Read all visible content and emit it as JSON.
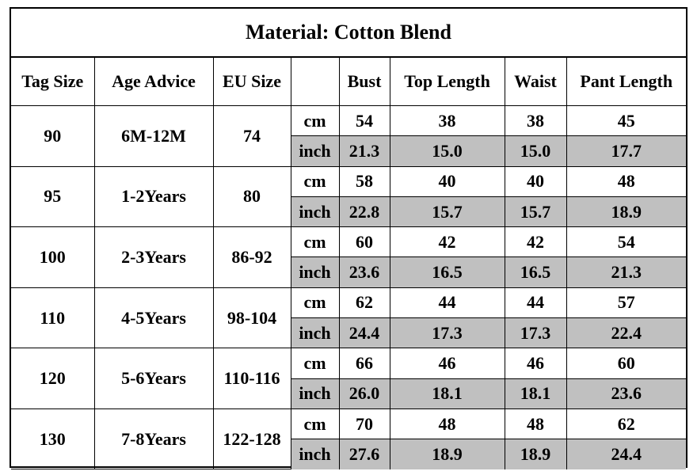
{
  "title": "Material: Cotton Blend",
  "headers": [
    "Tag Size",
    "Age Advice",
    "EU Size",
    "",
    "Bust",
    "Top Length",
    "Waist",
    "Pant Length"
  ],
  "rows": [
    {
      "tag": "90",
      "age": "6M-12M",
      "eu": "74",
      "cm": {
        "unit": "cm",
        "bust": "54",
        "top": "38",
        "waist": "38",
        "pant": "45"
      },
      "inch": {
        "unit": "inch",
        "bust": "21.3",
        "top": "15.0",
        "waist": "15.0",
        "pant": "17.7"
      }
    },
    {
      "tag": "95",
      "age": "1-2Years",
      "eu": "80",
      "cm": {
        "unit": "cm",
        "bust": "58",
        "top": "40",
        "waist": "40",
        "pant": "48"
      },
      "inch": {
        "unit": "inch",
        "bust": "22.8",
        "top": "15.7",
        "waist": "15.7",
        "pant": "18.9"
      }
    },
    {
      "tag": "100",
      "age": "2-3Years",
      "eu": "86-92",
      "cm": {
        "unit": "cm",
        "bust": "60",
        "top": "42",
        "waist": "42",
        "pant": "54"
      },
      "inch": {
        "unit": "inch",
        "bust": "23.6",
        "top": "16.5",
        "waist": "16.5",
        "pant": "21.3"
      }
    },
    {
      "tag": "110",
      "age": "4-5Years",
      "eu": "98-104",
      "cm": {
        "unit": "cm",
        "bust": "62",
        "top": "44",
        "waist": "44",
        "pant": "57"
      },
      "inch": {
        "unit": "inch",
        "bust": "24.4",
        "top": "17.3",
        "waist": "17.3",
        "pant": "22.4"
      }
    },
    {
      "tag": "120",
      "age": "5-6Years",
      "eu": "110-116",
      "cm": {
        "unit": "cm",
        "bust": "66",
        "top": "46",
        "waist": "46",
        "pant": "60"
      },
      "inch": {
        "unit": "inch",
        "bust": "26.0",
        "top": "18.1",
        "waist": "18.1",
        "pant": "23.6"
      }
    },
    {
      "tag": "130",
      "age": "7-8Years",
      "eu": "122-128",
      "cm": {
        "unit": "cm",
        "bust": "70",
        "top": "48",
        "waist": "48",
        "pant": "62"
      },
      "inch": {
        "unit": "inch",
        "bust": "27.6",
        "top": "18.9",
        "waist": "18.9",
        "pant": "24.4"
      }
    }
  ],
  "colors": {
    "shade": "#c0c0c0",
    "border": "#000000"
  }
}
